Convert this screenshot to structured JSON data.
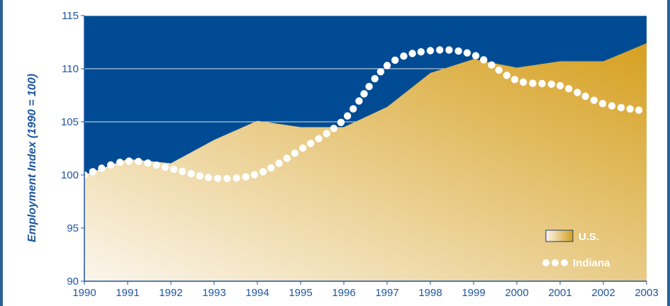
{
  "chart_data": {
    "type": "area",
    "title": "",
    "xlabel": "",
    "ylabel": "Employment Index (1990 = 100)",
    "ylim": [
      90,
      115
    ],
    "yticks": [
      "90",
      "95",
      "100",
      "105",
      "110",
      "115"
    ],
    "x": [
      "1990",
      "1991",
      "1992",
      "1993",
      "1994",
      "1995",
      "1996",
      "1997",
      "1998",
      "1999",
      "2000",
      "2001",
      "2002",
      "2003"
    ],
    "series": [
      {
        "name": "U.S.",
        "style": "area",
        "values": [
          100.0,
          101.5,
          101.1,
          103.3,
          105.1,
          104.5,
          104.5,
          106.4,
          109.6,
          110.9,
          110.1,
          110.7,
          110.7,
          112.4
        ]
      },
      {
        "name": "Indiana",
        "style": "dotted-line",
        "values": [
          100.0,
          101.3,
          100.6,
          99.7,
          100.1,
          102.4,
          105.2,
          110.3,
          111.7,
          111.3,
          108.9,
          108.4,
          106.7,
          106.0
        ]
      }
    ],
    "legend_position": "bottom-right",
    "grid": true,
    "colors": {
      "background": "#004b93",
      "gridline": "#ffffff",
      "area_light": "#fbf6ec",
      "area_dark": "#d6a020",
      "dots": "#ffffff",
      "text": "#1e56a0",
      "axis": "#1e56a0"
    }
  }
}
